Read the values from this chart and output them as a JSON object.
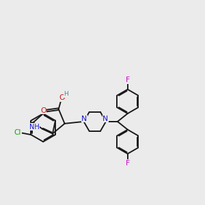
{
  "bg_color": "#ebebeb",
  "bond_color": "#1a1a1a",
  "N_color": "#1414cc",
  "O_color": "#cc1414",
  "Cl_color": "#00aa00",
  "F_color": "#cc00cc",
  "H_color": "#558888",
  "line_width": 1.4,
  "dbo": 0.055,
  "xlim": [
    0,
    10
  ],
  "ylim": [
    0,
    10
  ]
}
